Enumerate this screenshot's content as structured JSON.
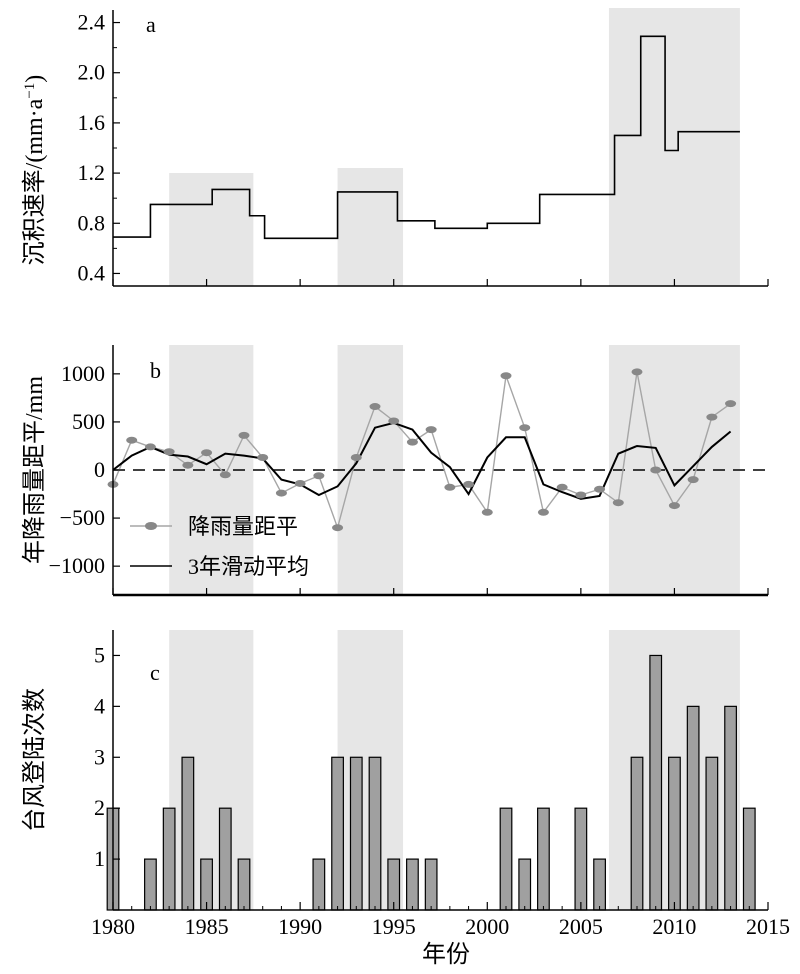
{
  "chart_data": [
    {
      "panel": "a",
      "type": "line",
      "subtype": "step",
      "ylabel_main": "沉积速率/",
      "ylabel_unit": "(mm·a",
      "ylabel_sup": "−1",
      "ylabel_close": ")",
      "ylim": [
        0.3,
        2.5
      ],
      "yticks": [
        "0.4",
        "0.8",
        "1.2",
        "1.6",
        "2.0",
        "2.4"
      ],
      "xlim": [
        1980,
        2015
      ],
      "segments": [
        {
          "x0": 1980,
          "x1": 1982,
          "y": 0.69
        },
        {
          "x0": 1982,
          "x1": 1985.3,
          "y": 0.95
        },
        {
          "x0": 1985.3,
          "x1": 1987.3,
          "y": 1.07
        },
        {
          "x0": 1987.3,
          "x1": 1988.1,
          "y": 0.86
        },
        {
          "x0": 1988.1,
          "x1": 1992,
          "y": 0.68
        },
        {
          "x0": 1992,
          "x1": 1995.2,
          "y": 1.05
        },
        {
          "x0": 1995.2,
          "x1": 1997.2,
          "y": 0.82
        },
        {
          "x0": 1997.2,
          "x1": 2000,
          "y": 0.76
        },
        {
          "x0": 2000,
          "x1": 2002.8,
          "y": 0.8
        },
        {
          "x0": 2002.8,
          "x1": 2006.8,
          "y": 1.03
        },
        {
          "x0": 2006.8,
          "x1": 2008.2,
          "y": 1.5
        },
        {
          "x0": 2008.2,
          "x1": 2009.5,
          "y": 2.29
        },
        {
          "x0": 2009.5,
          "x1": 2010.2,
          "y": 1.38
        },
        {
          "x0": 2010.2,
          "x1": 2013.5,
          "y": 1.53
        }
      ]
    },
    {
      "panel": "b",
      "type": "line",
      "ylabel": "年降雨量距平/mm",
      "ylim": [
        -1300,
        1300
      ],
      "yticks": [
        "1000",
        "500",
        "0",
        "−500",
        "−1000"
      ],
      "ytick_values": [
        1000,
        500,
        0,
        -500,
        -1000
      ],
      "xlim": [
        1980,
        2015
      ],
      "series": [
        {
          "name": "降雨量距平",
          "color": "#a6a6a6",
          "marker_color": "#888888",
          "x": [
            1980,
            1981,
            1982,
            1983,
            1984,
            1985,
            1986,
            1987,
            1988,
            1989,
            1990,
            1991,
            1992,
            1993,
            1994,
            1995,
            1996,
            1997,
            1998,
            1999,
            2000,
            2001,
            2002,
            2003,
            2004,
            2005,
            2006,
            2007,
            2008,
            2009,
            2010,
            2011,
            2012,
            2013
          ],
          "values": [
            -150,
            310,
            240,
            190,
            50,
            180,
            -50,
            360,
            130,
            -240,
            -140,
            -60,
            -600,
            130,
            660,
            510,
            290,
            420,
            -180,
            -150,
            -440,
            980,
            440,
            -440,
            -180,
            -260,
            -200,
            -340,
            1020,
            0,
            -370,
            -100,
            550,
            690
          ]
        },
        {
          "name": "3年滑动平均",
          "color": "#000000",
          "x": [
            1980,
            1981,
            1982,
            1983,
            1984,
            1985,
            1986,
            1987,
            1988,
            1989,
            1990,
            1991,
            1992,
            1993,
            1994,
            1995,
            1996,
            1997,
            1998,
            1999,
            2000,
            2001,
            2002,
            2003,
            2004,
            2005,
            2006,
            2007,
            2008,
            2009,
            2010,
            2011,
            2012,
            2013
          ],
          "values": [
            0,
            150,
            240,
            160,
            140,
            60,
            170,
            150,
            120,
            -100,
            -150,
            -260,
            -170,
            70,
            440,
            490,
            420,
            180,
            30,
            -250,
            130,
            340,
            340,
            -150,
            -230,
            -300,
            -270,
            170,
            250,
            230,
            -160,
            40,
            240,
            400
          ]
        }
      ],
      "baseline": 0
    },
    {
      "panel": "c",
      "type": "bar",
      "ylabel": "台风登陆次数",
      "ylim": [
        0,
        5.5
      ],
      "yticks": [
        "1",
        "2",
        "3",
        "4",
        "5"
      ],
      "ytick_values": [
        1,
        2,
        3,
        4,
        5
      ],
      "xlim": [
        1980,
        2015
      ],
      "bar_color": "#a0a0a0",
      "x": [
        1980,
        1981,
        1982,
        1983,
        1984,
        1985,
        1986,
        1987,
        1988,
        1989,
        1990,
        1991,
        1992,
        1993,
        1994,
        1995,
        1996,
        1997,
        1998,
        1999,
        2000,
        2001,
        2002,
        2003,
        2004,
        2005,
        2006,
        2007,
        2008,
        2009,
        2010,
        2011,
        2012,
        2013,
        2014
      ],
      "values": [
        2,
        0,
        1,
        2,
        3,
        1,
        2,
        1,
        0,
        0,
        0,
        1,
        3,
        3,
        3,
        1,
        1,
        1,
        0,
        0,
        0,
        2,
        1,
        2,
        0,
        2,
        1,
        0,
        3,
        5,
        3,
        4,
        3,
        4,
        2
      ]
    }
  ],
  "shared": {
    "xlabel": "年份",
    "xticks": [
      "1980",
      "1985",
      "1990",
      "1995",
      "2000",
      "2005",
      "2010",
      "2015"
    ],
    "xtick_values": [
      1980,
      1985,
      1990,
      1995,
      2000,
      2005,
      2010,
      2015
    ],
    "shaded_periods": [
      [
        1983,
        1987.5
      ],
      [
        1992,
        1995.5
      ],
      [
        2006.5,
        2013.5
      ]
    ],
    "shade_color": "#e6e6e6"
  }
}
